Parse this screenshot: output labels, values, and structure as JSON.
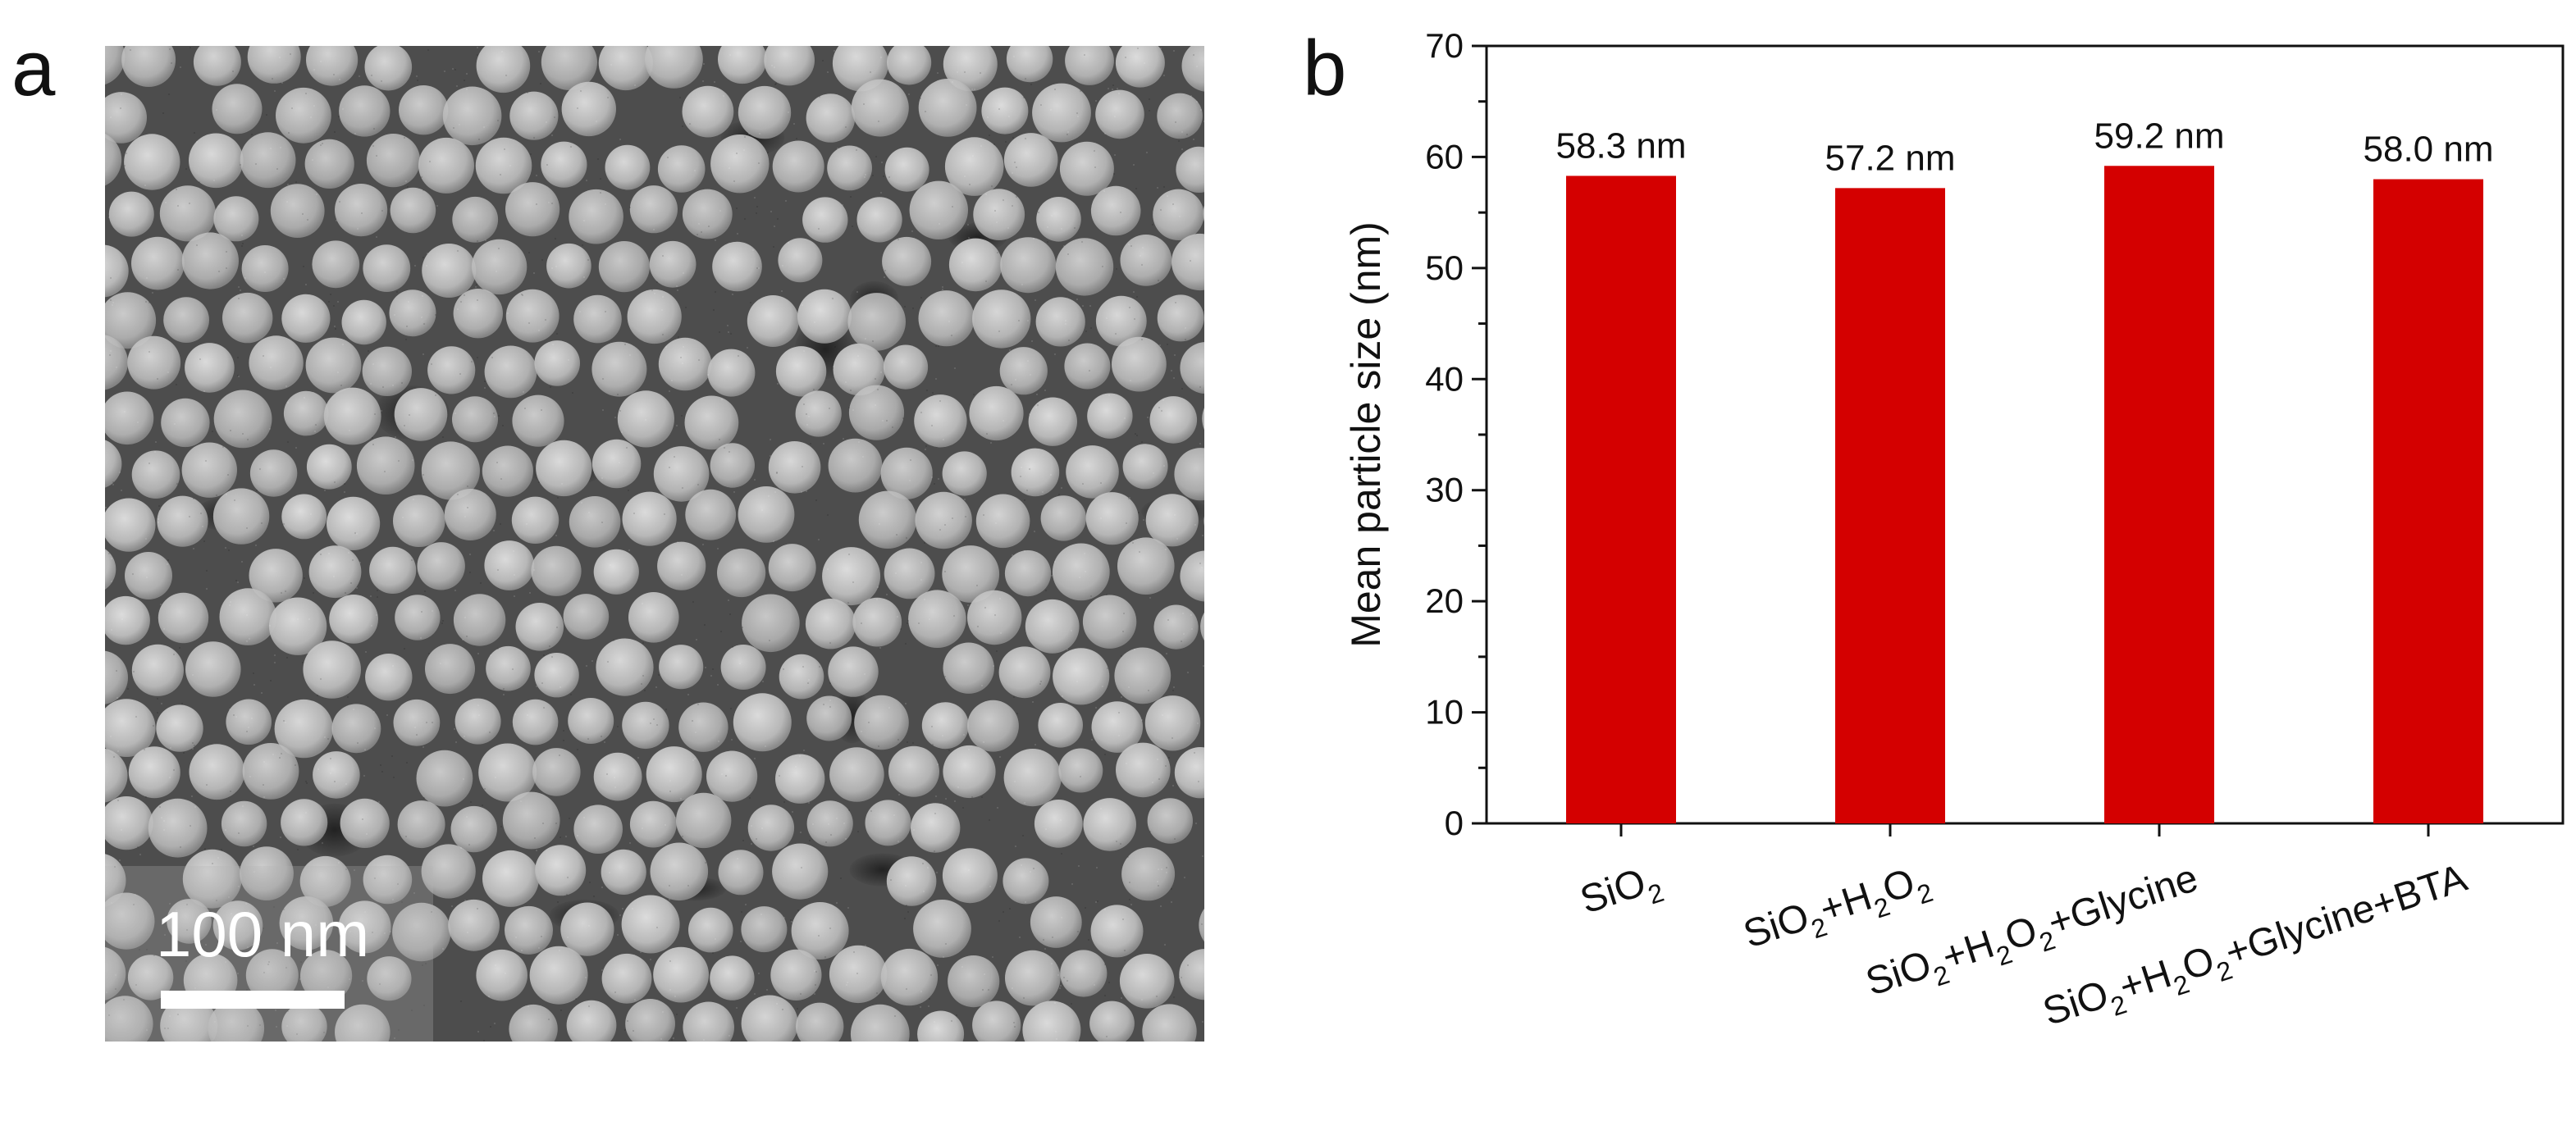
{
  "panels": {
    "a_label": "a",
    "b_label": "b"
  },
  "micrograph": {
    "scale_bar_text": "100 nm",
    "background_color": "#4d4d4d",
    "particle_color": "#bdbdbd"
  },
  "chart_data": {
    "type": "bar",
    "categories": [
      {
        "main": "SiO",
        "parts": [
          [
            "SiO",
            ""
          ],
          [
            "2",
            "sub"
          ]
        ]
      },
      {
        "main": "SiO +H2O2",
        "parts": [
          [
            "SiO",
            ""
          ],
          [
            "2",
            "sub"
          ],
          [
            "+H",
            ""
          ],
          [
            "2",
            "sub"
          ],
          [
            "O",
            ""
          ],
          [
            "2",
            "sub"
          ]
        ]
      },
      {
        "main": "SiO +H2O2+Glycine",
        "parts": [
          [
            "SiO",
            ""
          ],
          [
            "2",
            "sub"
          ],
          [
            "+H",
            ""
          ],
          [
            "2",
            "sub"
          ],
          [
            "O",
            ""
          ],
          [
            "2",
            "sub"
          ],
          [
            "+Glycine",
            ""
          ]
        ]
      },
      {
        "main": "SiO +H2O2+Glycine+BTA",
        "parts": [
          [
            "SiO",
            ""
          ],
          [
            "2",
            "sub"
          ],
          [
            "+H",
            ""
          ],
          [
            "2",
            "sub"
          ],
          [
            "O",
            ""
          ],
          [
            "2",
            "sub"
          ],
          [
            "+Glycine+BTA",
            ""
          ]
        ]
      }
    ],
    "values": [
      58.3,
      57.2,
      59.2,
      58.0
    ],
    "data_labels": [
      "58.3 nm",
      "57.2 nm",
      "59.2 nm",
      "58.0 nm"
    ],
    "ylabel": "Mean particle size (nm)",
    "ylim": [
      0,
      70
    ],
    "yticks": [
      0,
      10,
      20,
      30,
      40,
      50,
      60,
      70
    ],
    "bar_color": "#d40000",
    "grid": false
  }
}
